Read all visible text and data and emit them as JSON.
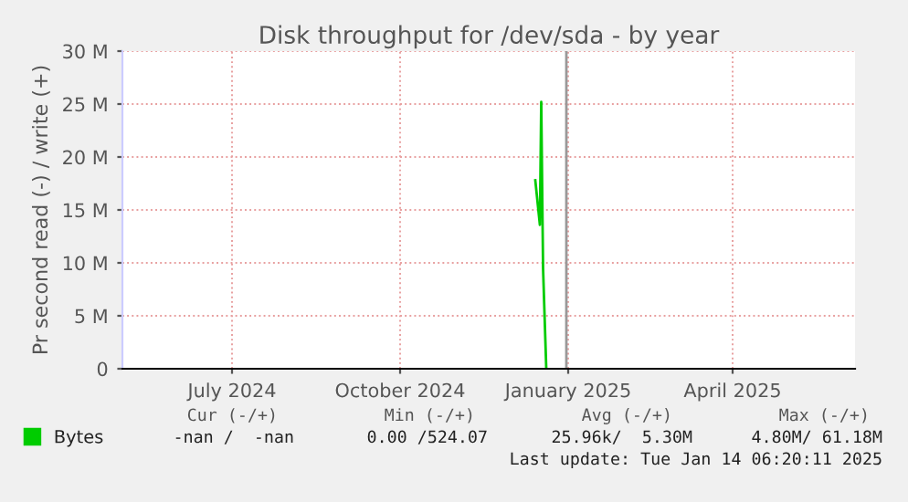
{
  "chart_data": {
    "type": "line",
    "title": "Disk throughput for /dev/sda - by year",
    "ylabel": "Pr second read (-) / write (+)",
    "series": [
      {
        "name": "Bytes",
        "color": "#00cc00",
        "x": [
          "2024-12-14T00:00",
          "2024-12-16T12:00",
          "2024-12-17T06:00",
          "2024-12-18T06:00",
          "2024-12-20T00:00"
        ],
        "values": [
          17800000,
          13600000,
          25200000,
          9500000,
          0
        ]
      }
    ],
    "xlim": [
      "2024-05-02",
      "2025-06-07"
    ],
    "xticks": [
      {
        "value": "2024-07-01",
        "label": "July 2024"
      },
      {
        "value": "2024-10-01",
        "label": "October 2024"
      },
      {
        "value": "2025-01-01",
        "label": "January 2025"
      },
      {
        "value": "2025-04-01",
        "label": "April 2025"
      }
    ],
    "ylim": [
      0,
      30000000
    ],
    "yticks": [
      0,
      {
        "value": 5000000,
        "label": "5 M"
      },
      {
        "value": 10000000,
        "label": "10 M"
      },
      {
        "value": 15000000,
        "label": "15 M"
      },
      {
        "value": 20000000,
        "label": "20 M"
      },
      {
        "value": 25000000,
        "label": "25 M"
      },
      {
        "value": 30000000,
        "label": "30 M"
      }
    ],
    "ref_lines": [
      {
        "axis": "x",
        "value": "2024-12-31",
        "color": "#999999"
      }
    ],
    "grid": true,
    "legend": "bottom left",
    "annotations": [
      "Cur (-/+)",
      "Min (-/+)",
      "Avg (-/+)",
      "Max (-/+)",
      "-nan /  -nan",
      "0.00 /524.07",
      "25.96k/  5.30M",
      "4.80M/ 61.18M",
      "Last update: Tue Jan 14 06:20:11 2025"
    ]
  }
}
